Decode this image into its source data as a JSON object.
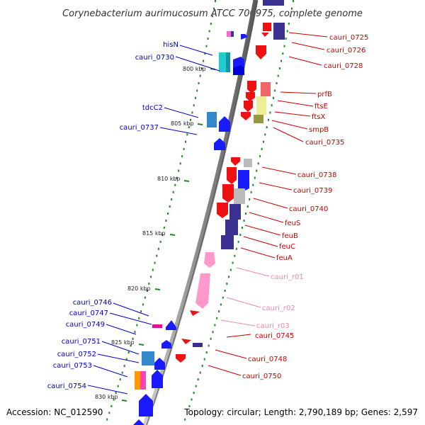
{
  "title": "Corynebacterium aurimucosum ATCC 700975, complete genome",
  "accession": "Accession: NC_012590",
  "topology": "Topology: circular; Length: 2,790,189 bp; Genes: 2,597",
  "colors": {
    "forward_label": "#0000cc",
    "reverse_label": "#cc0000",
    "rna_label": "#ee88aa",
    "backbone": "#888888",
    "tick": "#1e8a1e"
  },
  "scale_marks": [
    "800 kbp",
    "805 kbp",
    "810 kbp",
    "815 kbp",
    "820 kbp",
    "825 kbp",
    "830 kbp"
  ],
  "forward_genes": [
    {
      "label": "hisN"
    },
    {
      "label": "cauri_0730"
    },
    {
      "label": "tdcC2"
    },
    {
      "label": "cauri_0737"
    },
    {
      "label": "cauri_0746"
    },
    {
      "label": "cauri_0747"
    },
    {
      "label": "cauri_0749"
    },
    {
      "label": "cauri_0751"
    },
    {
      "label": "cauri_0752"
    },
    {
      "label": "cauri_0753"
    },
    {
      "label": "cauri_0754"
    }
  ],
  "reverse_genes": [
    {
      "label": "cauri_0725"
    },
    {
      "label": "cauri_0726"
    },
    {
      "label": "cauri_0728"
    },
    {
      "label": "prfB"
    },
    {
      "label": "ftsE"
    },
    {
      "label": "ftsX"
    },
    {
      "label": "smpB"
    },
    {
      "label": "cauri_0735"
    },
    {
      "label": "cauri_0738"
    },
    {
      "label": "cauri_0739"
    },
    {
      "label": "cauri_0740"
    },
    {
      "label": "feuS"
    },
    {
      "label": "feuB"
    },
    {
      "label": "feuC"
    },
    {
      "label": "feuA"
    },
    {
      "label": "cauri_r01"
    },
    {
      "label": "cauri_r02"
    },
    {
      "label": "cauri_r03"
    },
    {
      "label": "cauri_0745"
    },
    {
      "label": "cauri_0748"
    },
    {
      "label": "cauri_0750"
    }
  ]
}
